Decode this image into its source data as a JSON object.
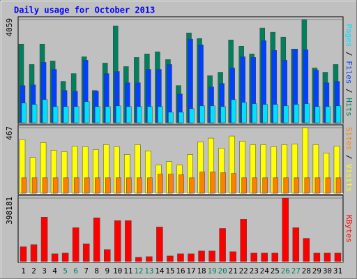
{
  "title": "Daily usage for October 2013",
  "legend_separator": "/",
  "categories": [
    "1",
    "2",
    "3",
    "4",
    "5",
    "6",
    "7",
    "8",
    "9",
    "10",
    "11",
    "12",
    "13",
    "14",
    "15",
    "16",
    "17",
    "18",
    "19",
    "20",
    "21",
    "22",
    "23",
    "24",
    "25",
    "26",
    "27",
    "28",
    "29",
    "30",
    "31"
  ],
  "category_colors": [
    "#000000",
    "#000000",
    "#000000",
    "#000000",
    "#00805c",
    "#00805c",
    "#000000",
    "#000000",
    "#000000",
    "#000000",
    "#000000",
    "#00805c",
    "#00805c",
    "#000000",
    "#000000",
    "#000000",
    "#000000",
    "#000000",
    "#00805c",
    "#00805c",
    "#000000",
    "#000000",
    "#000000",
    "#000000",
    "#000000",
    "#00805c",
    "#00805c",
    "#000000",
    "#000000",
    "#000000",
    "#000000"
  ],
  "chart_data": [
    {
      "type": "bar",
      "ylim": [
        0,
        4059
      ],
      "yticks": [
        4059
      ],
      "grid": true,
      "series": [
        {
          "name": "Hits",
          "color": "#00805c",
          "values": [
            3092,
            2292,
            3092,
            2430,
            1629,
            1933,
            2595,
            1270,
            2347,
            3810,
            2209,
            2568,
            2706,
            2789,
            2485,
            1463,
            3534,
            3313,
            1850,
            1988,
            3258,
            3010,
            2706,
            3727,
            3562,
            3369,
            2899,
            4059,
            2154,
            1988,
            2292
          ]
        },
        {
          "name": "Files",
          "color": "#0040ff",
          "values": [
            1463,
            1491,
            2375,
            2098,
            1270,
            1243,
            2457,
            1243,
            1933,
            2016,
            1574,
            1574,
            2098,
            2098,
            2292,
            1132,
            3286,
            3065,
            1408,
            1546,
            2154,
            2595,
            2568,
            3230,
            2844,
            2457,
            2899,
            2872,
            2071,
            1574,
            1629
          ]
        },
        {
          "name": "Pages",
          "color": "#00e0ff",
          "values": [
            773,
            718,
            911,
            635,
            635,
            635,
            828,
            635,
            635,
            663,
            635,
            635,
            635,
            635,
            414,
            414,
            552,
            663,
            663,
            635,
            911,
            801,
            746,
            718,
            718,
            663,
            718,
            746,
            635,
            635,
            663
          ]
        }
      ]
    },
    {
      "type": "bar",
      "ylim": [
        0,
        467
      ],
      "yticks": [
        467
      ],
      "grid": true,
      "series": [
        {
          "name": "Visits",
          "color": "#ffff00",
          "values": [
            382,
            256,
            361,
            306,
            296,
            336,
            331,
            311,
            346,
            331,
            276,
            346,
            301,
            201,
            226,
            201,
            276,
            366,
            392,
            321,
            407,
            371,
            346,
            346,
            331,
            346,
            351,
            467,
            346,
            286,
            336
          ]
        },
        {
          "name": "Sites",
          "color": "#ff8000",
          "values": [
            110,
            110,
            110,
            110,
            110,
            110,
            110,
            110,
            110,
            110,
            110,
            110,
            110,
            136,
            136,
            131,
            110,
            151,
            151,
            146,
            141,
            110,
            110,
            110,
            110,
            110,
            110,
            110,
            110,
            110,
            110
          ]
        }
      ]
    },
    {
      "type": "bar",
      "ylim": [
        0,
        398181
      ],
      "yticks": [
        398181
      ],
      "grid": true,
      "series": [
        {
          "name": "KBytes",
          "color": "#ff0000",
          "values": [
            92904,
            106176,
            278712,
            48664,
            53088,
            212352,
            110600,
            274288,
            75208,
            256592,
            256592,
            26544,
            30968,
            216776,
            35392,
            48664,
            48664,
            66360,
            66360,
            207928,
            61936,
            265440,
            53088,
            53088,
            53088,
            398181,
            212352,
            145992,
            53088,
            53088,
            53088
          ]
        }
      ]
    }
  ]
}
